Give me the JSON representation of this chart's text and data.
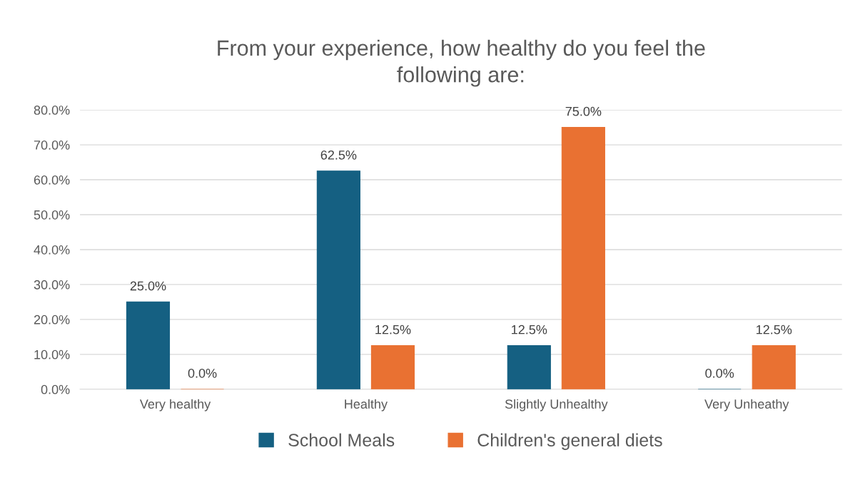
{
  "chart_data": {
    "type": "bar",
    "title": "From your experience, how healthy do you feel the\nfollowing are:",
    "categories": [
      "Very healthy",
      "Healthy",
      "Slightly Unhealthy",
      "Very Unheathy"
    ],
    "series": [
      {
        "name": "School Meals",
        "color": "#156082",
        "values": [
          25.0,
          62.5,
          12.5,
          0.0
        ],
        "value_labels": [
          "25.0%",
          "62.5%",
          "12.5%",
          "0.0%"
        ]
      },
      {
        "name": "Children's general diets",
        "color": "#e97132",
        "values": [
          0.0,
          12.5,
          75.0,
          12.5
        ],
        "value_labels": [
          "0.0%",
          "12.5%",
          "75.0%",
          "12.5%"
        ]
      }
    ],
    "ylim": [
      0,
      80
    ],
    "yticks": [
      {
        "value": 0,
        "label": "0.0%"
      },
      {
        "value": 10,
        "label": "10.0%"
      },
      {
        "value": 20,
        "label": "20.0%"
      },
      {
        "value": 30,
        "label": "30.0%"
      },
      {
        "value": 40,
        "label": "40.0%"
      },
      {
        "value": 50,
        "label": "50.0%"
      },
      {
        "value": 60,
        "label": "60.0%"
      },
      {
        "value": 70,
        "label": "70.0%"
      },
      {
        "value": 80,
        "label": "80.0%"
      }
    ],
    "grid": "y",
    "legend": "bottom"
  }
}
